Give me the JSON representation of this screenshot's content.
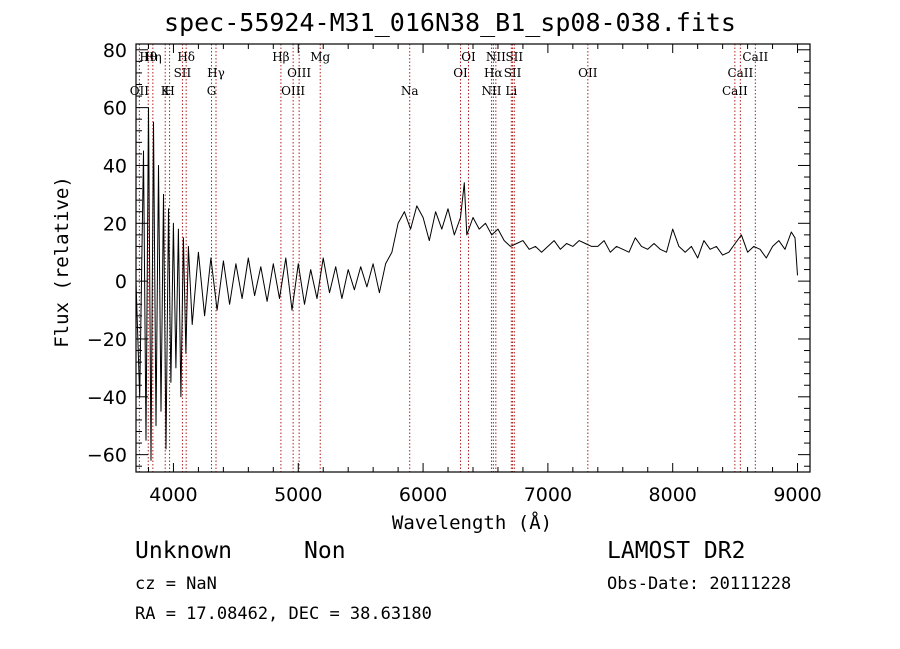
{
  "chart_data": {
    "type": "line",
    "title": "spec-55924-M31_016N38_B1_sp08-038.fits",
    "xlabel": "Wavelength (Å)",
    "ylabel": "Flux (relative)",
    "xlim": [
      3700,
      9100
    ],
    "ylim": [
      -66,
      82
    ],
    "x_ticks": [
      4000,
      5000,
      6000,
      7000,
      8000,
      9000
    ],
    "y_ticks": [
      -60,
      -40,
      -20,
      0,
      20,
      40,
      60,
      80
    ],
    "grid": false,
    "series": [
      {
        "x": [
          3700,
          3730,
          3760,
          3780,
          3800,
          3820,
          3840,
          3860,
          3880,
          3900,
          3920,
          3940,
          3960,
          3980,
          4000,
          4020,
          4040,
          4060,
          4080,
          4100,
          4120,
          4150,
          4200,
          4250,
          4300,
          4350,
          4400,
          4450,
          4500,
          4550,
          4600,
          4650,
          4700,
          4750,
          4800,
          4850,
          4900,
          4950,
          5000,
          5050,
          5100,
          5150,
          5200,
          5250,
          5300,
          5350,
          5400,
          5450,
          5500,
          5550,
          5600,
          5650,
          5700,
          5750,
          5800,
          5850,
          5900,
          5950,
          6000,
          6050,
          6100,
          6150,
          6200,
          6250,
          6300,
          6330,
          6350,
          6400,
          6450,
          6500,
          6550,
          6600,
          6650,
          6700,
          6750,
          6800,
          6850,
          6900,
          6950,
          7000,
          7050,
          7100,
          7150,
          7200,
          7250,
          7300,
          7350,
          7400,
          7450,
          7500,
          7550,
          7600,
          7650,
          7700,
          7750,
          7800,
          7850,
          7900,
          7950,
          8000,
          8050,
          8100,
          8150,
          8200,
          8250,
          8300,
          8350,
          8400,
          8450,
          8500,
          8550,
          8600,
          8650,
          8700,
          8750,
          8800,
          8850,
          8900,
          8950,
          8980,
          9000
        ],
        "y": [
          0,
          -40,
          45,
          -55,
          60,
          -62,
          55,
          -50,
          40,
          -45,
          30,
          -58,
          25,
          -35,
          20,
          -30,
          18,
          -40,
          15,
          -25,
          12,
          -15,
          10,
          -12,
          8,
          -10,
          7,
          -8,
          6,
          -6,
          8,
          -5,
          5,
          -7,
          6,
          -6,
          8,
          -10,
          6,
          -8,
          4,
          -6,
          8,
          -4,
          5,
          -6,
          4,
          -3,
          5,
          -2,
          6,
          -4,
          6,
          10,
          20,
          24,
          18,
          26,
          22,
          14,
          24,
          18,
          25,
          16,
          22,
          34,
          16,
          22,
          18,
          20,
          16,
          18,
          14,
          12,
          13,
          14,
          11,
          12,
          10,
          12,
          14,
          11,
          13,
          12,
          14,
          13,
          12,
          12,
          14,
          10,
          12,
          11,
          10,
          15,
          12,
          11,
          13,
          11,
          10,
          18,
          12,
          10,
          12,
          8,
          14,
          11,
          12,
          9,
          10,
          13,
          16,
          10,
          12,
          11,
          8,
          12,
          14,
          11,
          17,
          15,
          2
        ]
      }
    ],
    "line_marks": [
      {
        "x": 3727,
        "label": "OII",
        "row": 3
      },
      {
        "x": 3798,
        "label": "Hθ",
        "row": 1
      },
      {
        "x": 3835,
        "label": "Hη",
        "row": 1
      },
      {
        "x": 3934,
        "label": "K",
        "row": 3
      },
      {
        "x": 3969,
        "label": "H",
        "row": 3
      },
      {
        "x": 4072,
        "label": "SII",
        "row": 2
      },
      {
        "x": 4102,
        "label": "Hδ",
        "row": 1
      },
      {
        "x": 4305,
        "label": "G",
        "row": 3
      },
      {
        "x": 4341,
        "label": "Hγ",
        "row": 2
      },
      {
        "x": 4861,
        "label": "Hβ",
        "row": 1
      },
      {
        "x": 4959,
        "label": "OIII",
        "row": 3
      },
      {
        "x": 5007,
        "label": "OIII",
        "row": 2
      },
      {
        "x": 5176,
        "label": "Mg",
        "row": 1
      },
      {
        "x": 5893,
        "label": "Na",
        "row": 3
      },
      {
        "x": 6300,
        "label": "OI",
        "row": 2
      },
      {
        "x": 6364,
        "label": "OI",
        "row": 1
      },
      {
        "x": 6548,
        "label": "NII",
        "row": 3
      },
      {
        "x": 6563,
        "label": "Hα",
        "row": 2
      },
      {
        "x": 6583,
        "label": "NII",
        "row": 1
      },
      {
        "x": 6707,
        "label": "Li",
        "row": 3
      },
      {
        "x": 6717,
        "label": "SII",
        "row": 2
      },
      {
        "x": 6731,
        "label": "SII",
        "row": 1
      },
      {
        "x": 7320,
        "label": "OII",
        "row": 2
      },
      {
        "x": 8498,
        "label": "CaII",
        "row": 3
      },
      {
        "x": 8542,
        "label": "CaII",
        "row": 2
      },
      {
        "x": 8662,
        "label": "CaII",
        "row": 1
      }
    ]
  },
  "footer": {
    "object": "Unknown",
    "class": "Non",
    "survey": "LAMOST DR2",
    "cz": "cz = NaN",
    "obs_date": "Obs-Date: 20111228",
    "coords": "RA =  17.08462, DEC =  38.63180"
  },
  "colors": {
    "axes": "#000000",
    "spectrum": "#000000",
    "line_marker": "#b22222"
  }
}
